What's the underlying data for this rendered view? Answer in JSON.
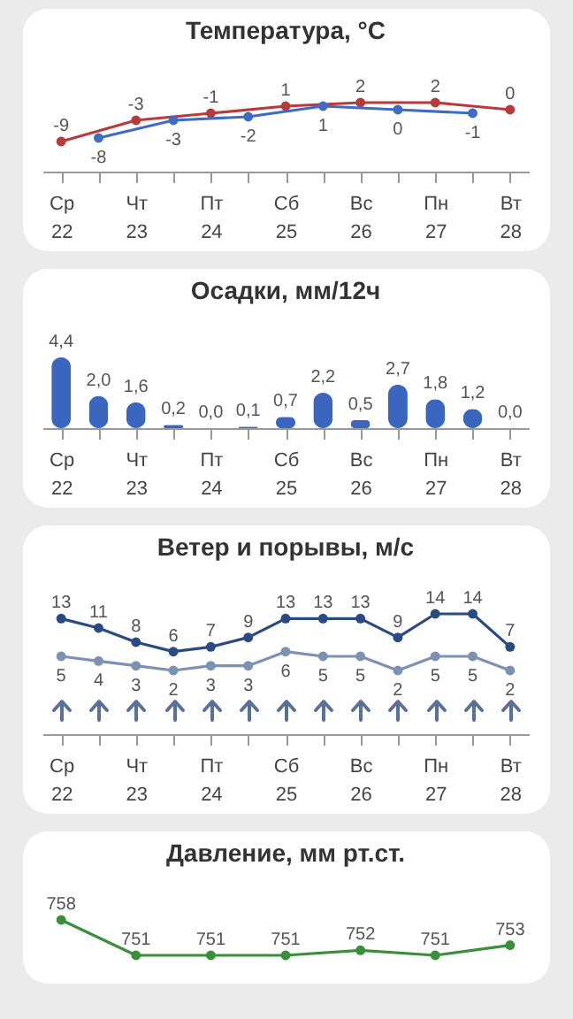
{
  "chart_data": [
    {
      "type": "line",
      "title": "Температура, °C",
      "categories": [
        "Ср\n22",
        null,
        "Чт\n23",
        null,
        "Пт\n24",
        null,
        "Сб\n25",
        null,
        "Вс\n26",
        null,
        "Пн\n27",
        null,
        "Вт\n28"
      ],
      "marker": "circle",
      "data_labels": true,
      "series": [
        {
          "color": "#b83b3b",
          "values": [
            -9,
            null,
            -3,
            null,
            -1,
            null,
            1,
            null,
            2,
            null,
            2,
            null,
            0
          ]
        },
        {
          "color": "#3d6cc2",
          "values": [
            null,
            -8,
            null,
            -3,
            null,
            -2,
            null,
            1,
            null,
            0,
            null,
            -1,
            null
          ]
        }
      ]
    },
    {
      "type": "bar",
      "title": "Осадки, мм/12ч",
      "categories": [
        "Ср\n22",
        null,
        "Чт\n23",
        null,
        "Пт\n24",
        null,
        "Сб\n25",
        null,
        "Вс\n26",
        null,
        "Пн\n27",
        null,
        "Вт\n28"
      ],
      "color": "#3a66c0",
      "values": [
        4.4,
        2.0,
        1.6,
        0.2,
        0.0,
        0.1,
        0.7,
        2.2,
        0.5,
        2.7,
        1.8,
        1.2,
        0.0
      ],
      "value_labels": [
        "4,4",
        "2,0",
        "1,6",
        "0,2",
        "0,0",
        "0,1",
        "0,7",
        "2,2",
        "0,5",
        "2,7",
        "1,8",
        "1,2",
        "0,0"
      ]
    },
    {
      "type": "line",
      "title": "Ветер и порывы, м/с",
      "categories": [
        "Ср\n22",
        null,
        "Чт\n23",
        null,
        "Пт\n24",
        null,
        "Сб\n25",
        null,
        "Вс\n26",
        null,
        "Пн\n27",
        null,
        "Вт\n28"
      ],
      "marker": "circle",
      "data_labels": true,
      "series": [
        {
          "color": "#2a4b82",
          "values": [
            13,
            11,
            8,
            6,
            7,
            9,
            13,
            13,
            13,
            9,
            14,
            14,
            7
          ]
        },
        {
          "color": "#7d91b3",
          "values": [
            5,
            4,
            3,
            2,
            3,
            3,
            6,
            5,
            5,
            2,
            5,
            5,
            2
          ]
        }
      ]
    },
    {
      "type": "line",
      "title": "Давление, мм рт.ст.",
      "categories": [
        null,
        null,
        null,
        null,
        null,
        null,
        null,
        null,
        null,
        null,
        null,
        null,
        null
      ],
      "marker": "circle",
      "data_labels": true,
      "tick_labels": false,
      "series": [
        {
          "color": "#3a8f3a",
          "values": [
            758,
            null,
            751,
            null,
            751,
            null,
            751,
            null,
            752,
            null,
            751,
            null,
            753
          ]
        }
      ]
    }
  ]
}
